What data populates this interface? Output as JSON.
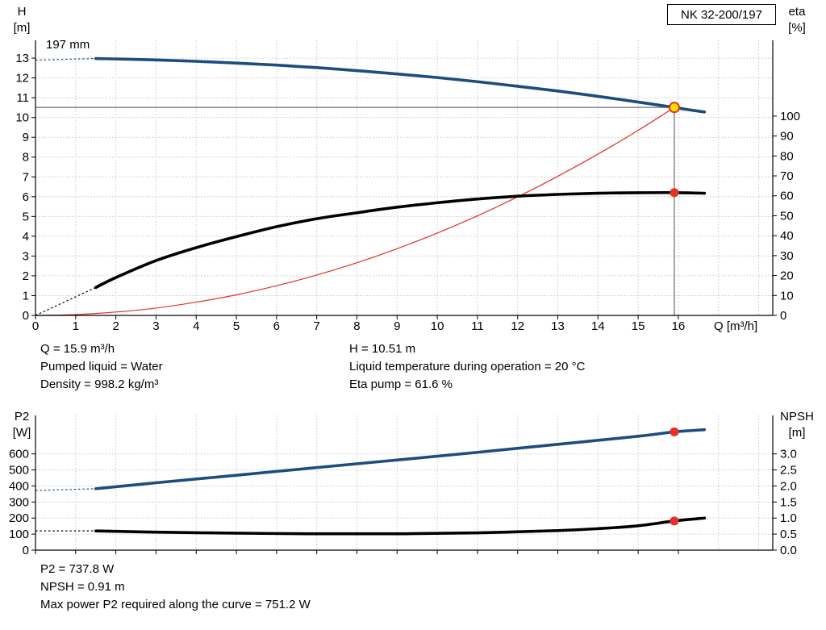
{
  "pump_model": "NK 32-200/197",
  "colors": {
    "curve_blue": "#1b4d7e",
    "curve_black": "#000000",
    "curve_red": "#e53126",
    "marker_red": "#e53126",
    "marker_yellow": "#ffdf00",
    "crosshair": "#4b4b4b",
    "grid": "#c6c6c6",
    "axis": "#000000"
  },
  "info_top_left": [
    "Q = 15.9 m³/h",
    "Pumped liquid = Water",
    "Density = 998.2 kg/m³"
  ],
  "info_top_right": [
    "H = 10.51 m",
    "Liquid temperature during operation = 20 °C",
    "Eta pump = 61.6 %"
  ],
  "info_bottom": [
    "P2 = 737.8 W",
    "NPSH = 0.91 m",
    "Max power P2 required along the curve = 751.2 W"
  ],
  "chart_data": [
    {
      "id": "head-efficiency-chart",
      "type": "line",
      "curve_label": "197 mm",
      "x": {
        "label": "Q [m³/h]",
        "min": 0,
        "max": 18.35,
        "show_labels": true,
        "ticks": [
          0,
          1,
          2,
          3,
          4,
          5,
          6,
          7,
          8,
          9,
          10,
          11,
          12,
          13,
          14,
          15,
          16
        ],
        "grid": [
          1,
          2,
          3,
          4,
          5,
          6,
          7,
          8,
          9,
          10,
          11,
          12,
          13,
          14,
          15,
          16,
          17,
          18
        ]
      },
      "left": {
        "title": [
          "H",
          "[m]"
        ],
        "min": 0,
        "max": 13.9,
        "ticks": [
          0,
          1,
          2,
          3,
          4,
          5,
          6,
          7,
          8,
          9,
          10,
          11,
          12,
          13
        ],
        "grid": [
          1,
          2,
          3,
          4,
          5,
          6,
          7,
          8,
          9,
          10,
          11,
          12,
          13
        ]
      },
      "right": {
        "title": [
          "eta",
          "[%]"
        ],
        "min": 0,
        "max": 138,
        "ticks": [
          0,
          10,
          20,
          30,
          40,
          50,
          60,
          70,
          80,
          90,
          100
        ]
      },
      "crosshair": {
        "q": 15.9,
        "value": 10.51
      },
      "series": [
        {
          "name": "system-curve",
          "axis": "left",
          "color": "curve_red",
          "width": 1.2,
          "points": [
            [
              0,
              0
            ],
            [
              1,
              0.04
            ],
            [
              2,
              0.17
            ],
            [
              3,
              0.37
            ],
            [
              4,
              0.67
            ],
            [
              5,
              1.04
            ],
            [
              6,
              1.5
            ],
            [
              7,
              2.04
            ],
            [
              8,
              2.66
            ],
            [
              9,
              3.37
            ],
            [
              10,
              4.16
            ],
            [
              11,
              5.03
            ],
            [
              12,
              5.99
            ],
            [
              13,
              7.03
            ],
            [
              14,
              8.15
            ],
            [
              15,
              9.35
            ],
            [
              15.9,
              10.51
            ]
          ]
        },
        {
          "name": "head-curve",
          "axis": "left",
          "color": "curve_blue",
          "width": 3.6,
          "lead": [
            [
              0,
              12.9
            ],
            [
              1.5,
              12.98
            ]
          ],
          "points": [
            [
              1.5,
              12.98
            ],
            [
              3,
              12.91
            ],
            [
              4,
              12.84
            ],
            [
              5,
              12.75
            ],
            [
              6,
              12.65
            ],
            [
              7,
              12.52
            ],
            [
              8,
              12.37
            ],
            [
              9,
              12.2
            ],
            [
              10,
              12.02
            ],
            [
              11,
              11.81
            ],
            [
              12,
              11.58
            ],
            [
              13,
              11.34
            ],
            [
              14,
              11.07
            ],
            [
              15,
              10.78
            ],
            [
              15.9,
              10.51
            ],
            [
              16.2,
              10.41
            ],
            [
              16.65,
              10.28
            ]
          ]
        },
        {
          "name": "efficiency-curve",
          "axis": "right",
          "color": "curve_black",
          "width": 3.6,
          "lead": [
            [
              0,
              0
            ],
            [
              1.5,
              14
            ]
          ],
          "points": [
            [
              1.5,
              14
            ],
            [
              2,
              19
            ],
            [
              3,
              27.5
            ],
            [
              4,
              34
            ],
            [
              5,
              39.5
            ],
            [
              6,
              44.5
            ],
            [
              7,
              48.5
            ],
            [
              8,
              51.5
            ],
            [
              9,
              54.3
            ],
            [
              10,
              56.5
            ],
            [
              11,
              58.4
            ],
            [
              12,
              59.8
            ],
            [
              13,
              60.7
            ],
            [
              14,
              61.3
            ],
            [
              15,
              61.55
            ],
            [
              15.9,
              61.6
            ],
            [
              16.65,
              61.3
            ]
          ]
        }
      ],
      "markers": [
        {
          "name": "efficiency-point-marker",
          "q": 15.9,
          "value": 61.6,
          "axis": "right",
          "fill": "marker_red",
          "r": 5.5
        },
        {
          "name": "duty-point-marker",
          "q": 15.9,
          "value": 10.51,
          "axis": "left",
          "fill": "marker_yellow",
          "stroke": "marker_red",
          "sw": 2,
          "r": 6
        }
      ]
    },
    {
      "id": "power-npsh-chart",
      "type": "line",
      "x": {
        "min": 0,
        "max": 18.35,
        "show_labels": false,
        "ticks": [
          0,
          1,
          2,
          3,
          4,
          5,
          6,
          7,
          8,
          9,
          10,
          11,
          12,
          13,
          14,
          15,
          16
        ],
        "grid": [
          1,
          2,
          3,
          4,
          5,
          6,
          7,
          8,
          9,
          10,
          11,
          12,
          13,
          14,
          15,
          16,
          17,
          18
        ]
      },
      "left": {
        "title": [
          "P2",
          "[W]"
        ],
        "min": 0,
        "max": 840,
        "ticks": [
          0,
          100,
          200,
          300,
          400,
          500,
          600
        ],
        "grid": [
          100,
          200,
          300,
          400,
          500,
          600
        ]
      },
      "right": {
        "title": [
          "NPSH",
          "[m]"
        ],
        "min": 0,
        "max": 4.2,
        "ticks": [
          0,
          0.5,
          1,
          1.5,
          2,
          2.5,
          3
        ],
        "labels": [
          "0.0",
          "0.5",
          "1.0",
          "1.5",
          "2.0",
          "2.5",
          "3.0"
        ]
      },
      "series": [
        {
          "name": "p2-curve",
          "axis": "left",
          "color": "curve_blue",
          "width": 3.6,
          "lead": [
            [
              0,
              372
            ],
            [
              1.5,
              383
            ]
          ],
          "points": [
            [
              1.5,
              383
            ],
            [
              3,
              420
            ],
            [
              5,
              467
            ],
            [
              7,
              515
            ],
            [
              9,
              562
            ],
            [
              11,
              610
            ],
            [
              13,
              660
            ],
            [
              15,
              710
            ],
            [
              15.9,
              737.8
            ],
            [
              16.3,
              745
            ],
            [
              16.65,
              751.2
            ]
          ]
        },
        {
          "name": "npsh-curve",
          "axis": "right",
          "color": "curve_black",
          "width": 3.6,
          "lead": [
            [
              0,
              0.6
            ],
            [
              1.5,
              0.6
            ]
          ],
          "points": [
            [
              1.5,
              0.6
            ],
            [
              3,
              0.56
            ],
            [
              5,
              0.53
            ],
            [
              7,
              0.51
            ],
            [
              9,
              0.51
            ],
            [
              11,
              0.54
            ],
            [
              13,
              0.61
            ],
            [
              14,
              0.67
            ],
            [
              15,
              0.76
            ],
            [
              15.9,
              0.91
            ],
            [
              16.65,
              1.0
            ]
          ]
        }
      ],
      "markers": [
        {
          "name": "p2-point-marker",
          "q": 15.9,
          "value": 737.8,
          "axis": "left",
          "fill": "marker_red",
          "r": 5.5
        },
        {
          "name": "npsh-point-marker",
          "q": 15.9,
          "value": 0.91,
          "axis": "right",
          "fill": "marker_red",
          "r": 5.5
        }
      ]
    }
  ]
}
